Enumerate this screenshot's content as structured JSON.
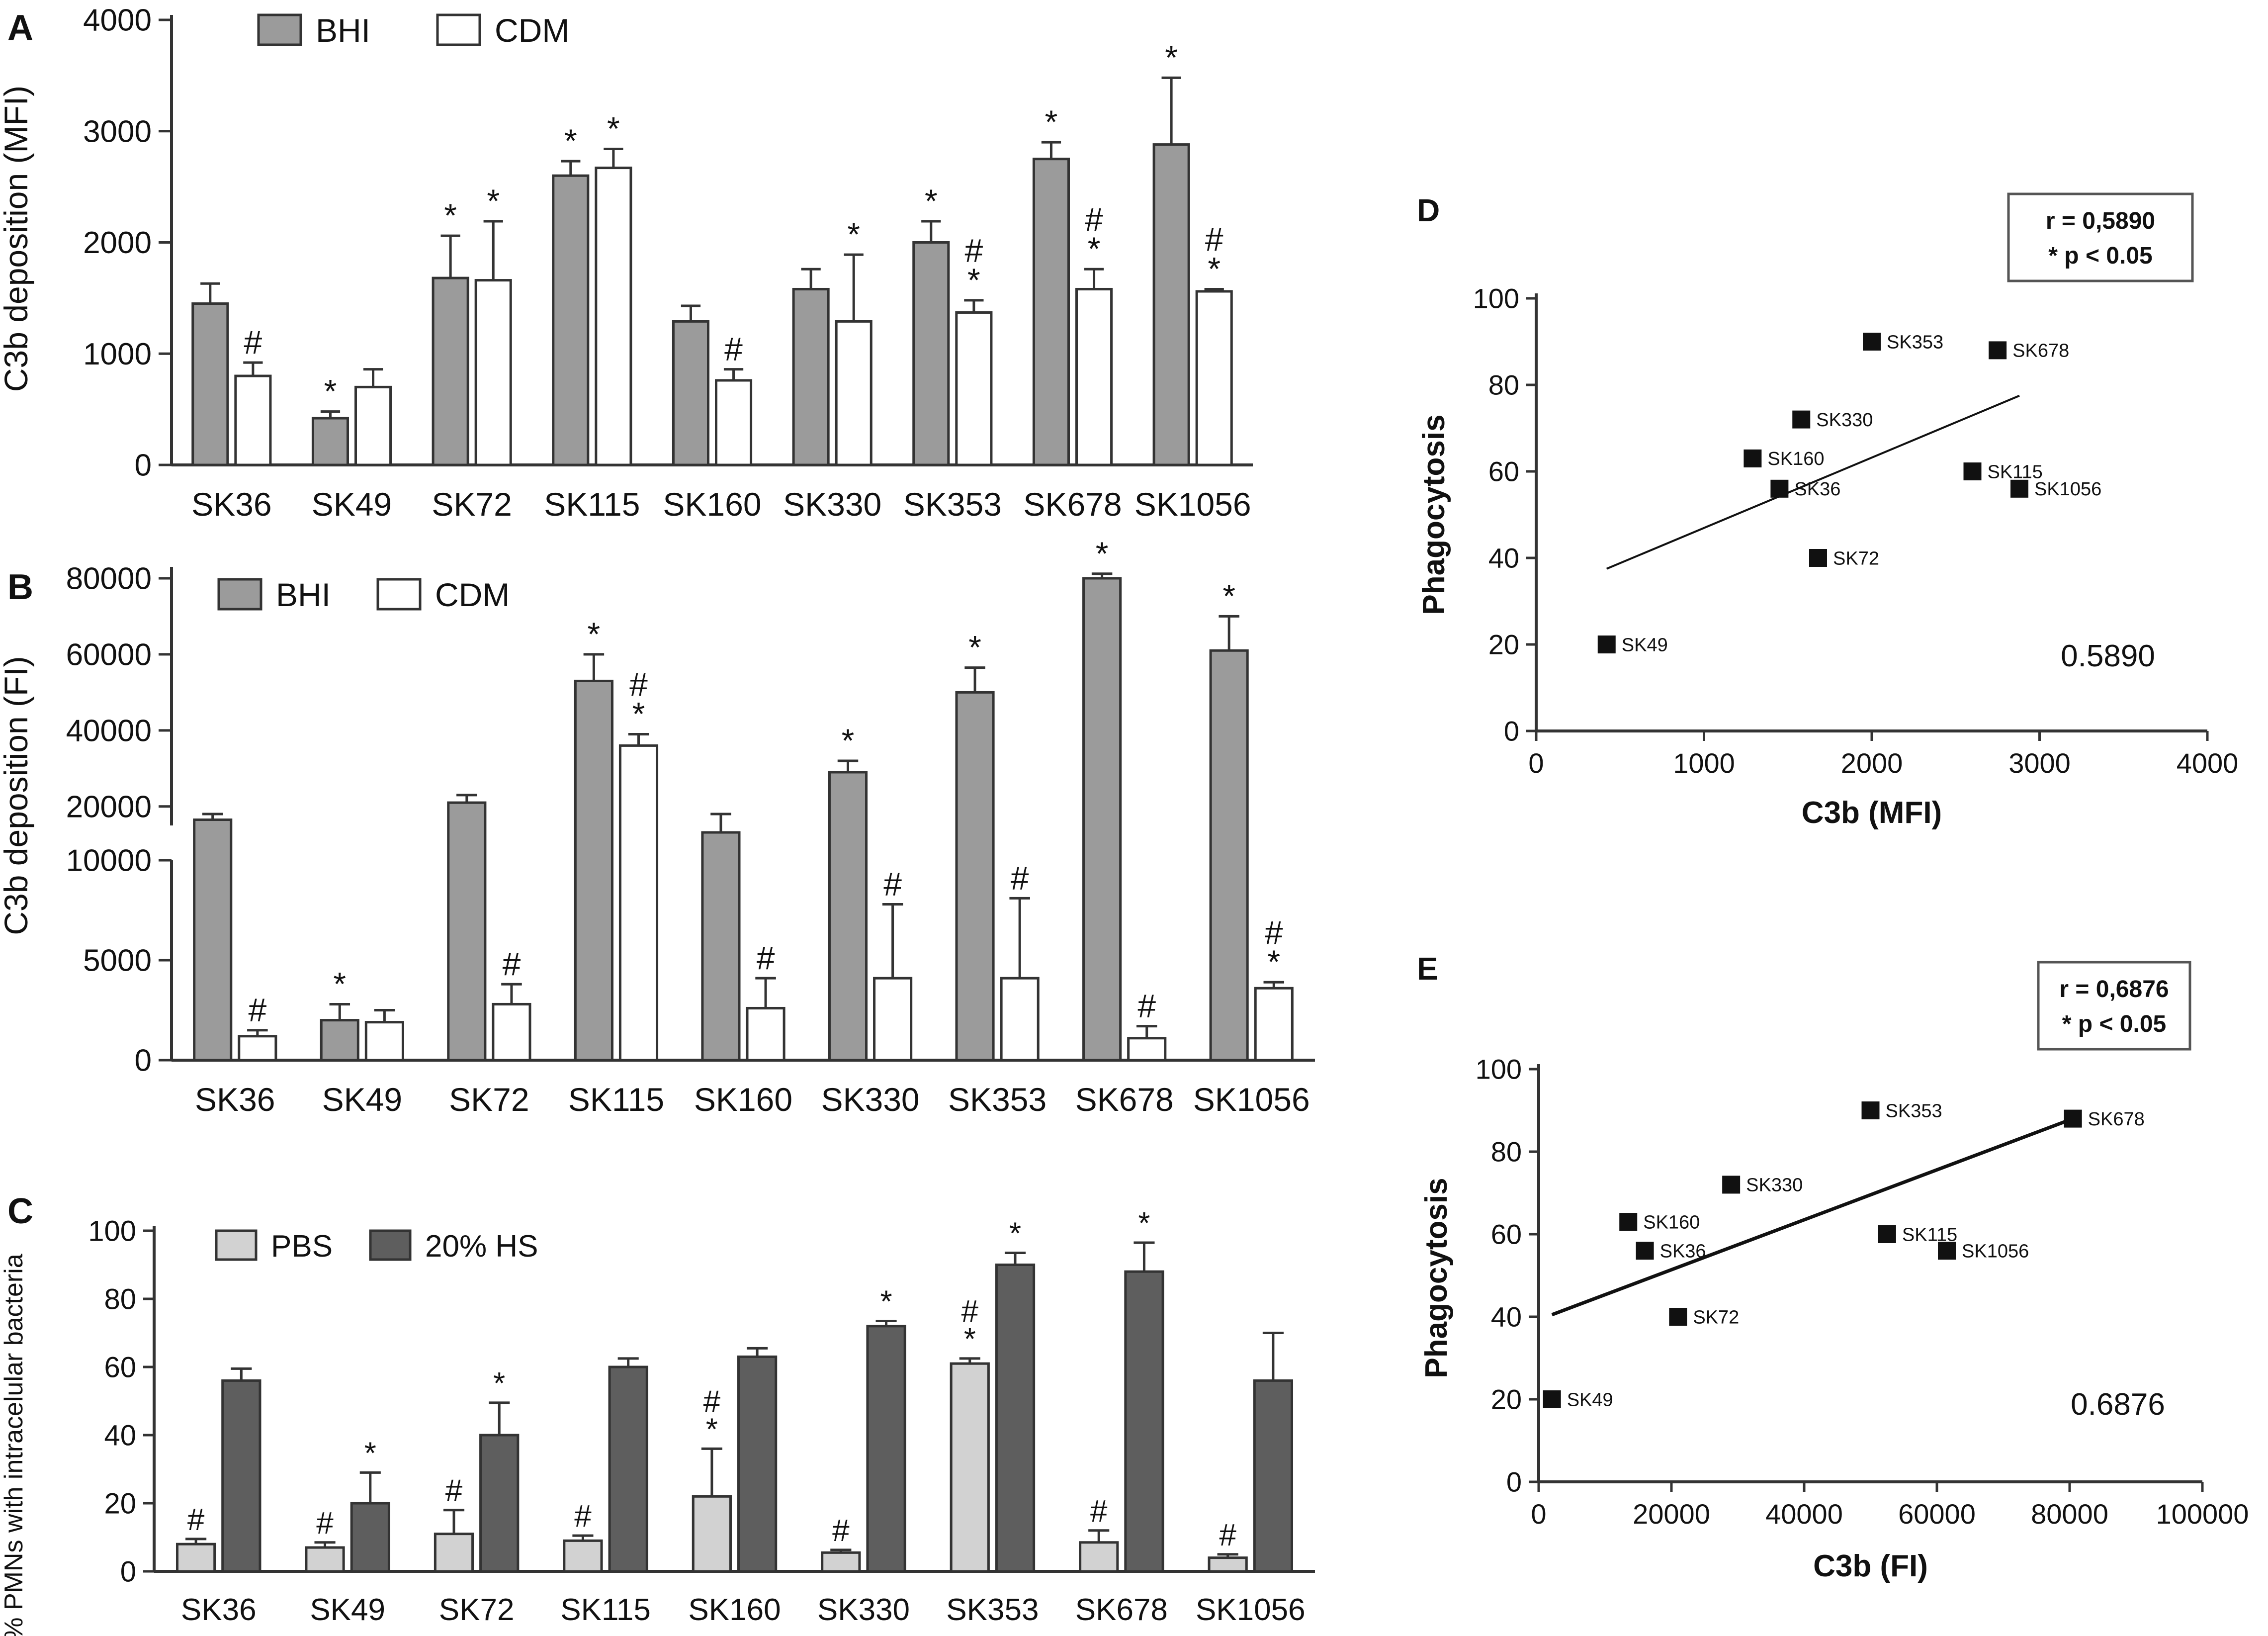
{
  "colors": {
    "bhi": "#9b9b9b",
    "cdm": "#ffffff",
    "pbs": "#d2d2d2",
    "hs": "#5e5e5e",
    "point": "#111111",
    "stroke": "#333333"
  },
  "chart_data": [
    {
      "id": "A",
      "panel_label": "A",
      "type": "bar",
      "ylabel": "C3b deposition (MFI)",
      "ylim": [
        0,
        4000
      ],
      "yticks": [
        "0",
        "1000",
        "2000",
        "3000",
        "4000"
      ],
      "ytick_values": [
        0,
        1000,
        2000,
        3000,
        4000
      ],
      "categories": [
        "SK36",
        "SK49",
        "SK72",
        "SK115",
        "SK160",
        "SK330",
        "SK353",
        "SK678",
        "SK1056"
      ],
      "legend": [
        "BHI",
        "CDM"
      ],
      "series": [
        {
          "name": "BHI",
          "color": "#9b9b9b",
          "values": [
            1450,
            420,
            1680,
            2600,
            1290,
            1580,
            2000,
            2750,
            2880
          ],
          "errors": [
            180,
            60,
            380,
            130,
            140,
            180,
            190,
            150,
            600
          ],
          "marks": [
            "",
            "*",
            "*",
            "*",
            "",
            "",
            "*",
            "*",
            "*"
          ]
        },
        {
          "name": "CDM",
          "color": "#ffffff",
          "values": [
            800,
            700,
            1660,
            2670,
            760,
            1290,
            1370,
            1580,
            1560
          ],
          "errors": [
            120,
            160,
            530,
            170,
            100,
            600,
            110,
            180,
            20
          ],
          "marks": [
            "#",
            "",
            "*",
            "*",
            "#",
            "*",
            "#*",
            "#*",
            "#*"
          ]
        }
      ]
    },
    {
      "id": "B",
      "panel_label": "B",
      "type": "bar",
      "ylabel": "C3b deposition (FI)",
      "ylim_lower": [
        0,
        10000
      ],
      "ylim_upper": [
        15000,
        83000
      ],
      "yticks": [
        "0",
        "5000",
        "10000",
        "20000",
        "40000",
        "60000",
        "80000"
      ],
      "ytick_values": [
        0,
        5000,
        10000,
        20000,
        40000,
        60000,
        80000
      ],
      "categories": [
        "SK36",
        "SK49",
        "SK72",
        "SK115",
        "SK160",
        "SK330",
        "SK353",
        "SK678",
        "SK1056"
      ],
      "legend": [
        "BHI",
        "CDM"
      ],
      "series": [
        {
          "name": "BHI",
          "color": "#9b9b9b",
          "values": [
            16500,
            2000,
            21000,
            53000,
            14000,
            29000,
            50000,
            80000,
            61000
          ],
          "errors": [
            1500,
            800,
            2000,
            7000,
            4000,
            3000,
            6500,
            1200,
            9000
          ],
          "marks": [
            "",
            "*",
            "",
            "*",
            "",
            "*",
            "*",
            "*",
            "*"
          ]
        },
        {
          "name": "CDM",
          "color": "#ffffff",
          "values": [
            1200,
            1900,
            2800,
            36000,
            2600,
            4100,
            4100,
            1100,
            3600
          ],
          "errors": [
            300,
            600,
            1000,
            3000,
            1500,
            3700,
            4000,
            600,
            300
          ],
          "marks": [
            "#",
            "",
            "#",
            "#*",
            "#",
            "#",
            "#",
            "#",
            "#*"
          ]
        }
      ]
    },
    {
      "id": "C",
      "panel_label": "C",
      "type": "bar",
      "ylabel": "% PMNs with intracelular bacteria",
      "ylim": [
        0,
        100
      ],
      "yticks": [
        "0",
        "20",
        "40",
        "60",
        "80",
        "100"
      ],
      "ytick_values": [
        0,
        20,
        40,
        60,
        80,
        100
      ],
      "categories": [
        "SK36",
        "SK49",
        "SK72",
        "SK115",
        "SK160",
        "SK330",
        "SK353",
        "SK678",
        "SK1056"
      ],
      "legend": [
        "PBS",
        "20% HS"
      ],
      "series": [
        {
          "name": "PBS",
          "color": "#d2d2d2",
          "values": [
            8,
            7,
            11,
            9,
            22,
            5.5,
            61,
            8.5,
            4
          ],
          "errors": [
            1.5,
            1.5,
            7,
            1.5,
            14,
            0.8,
            1.5,
            3.5,
            1
          ],
          "marks": [
            "#",
            "#",
            "#",
            "#",
            "#*",
            "#",
            "#*",
            "#",
            "#"
          ]
        },
        {
          "name": "20% HS",
          "color": "#5e5e5e",
          "values": [
            56,
            20,
            40,
            60,
            63,
            72,
            90,
            88,
            56
          ],
          "errors": [
            3.5,
            9,
            9.5,
            2.5,
            2.5,
            1.5,
            3.5,
            8.5,
            14
          ],
          "marks": [
            "",
            "*",
            "*",
            "",
            "",
            "*",
            "*",
            "*",
            ""
          ]
        }
      ]
    },
    {
      "id": "D",
      "panel_label": "D",
      "type": "scatter",
      "xlabel": "C3b (MFI)",
      "ylabel": "Phagocytosis",
      "xlim": [
        0,
        4000
      ],
      "ylim": [
        0,
        100
      ],
      "xticks": [
        "0",
        "1000",
        "2000",
        "3000",
        "4000"
      ],
      "xtick_values": [
        0,
        1000,
        2000,
        3000,
        4000
      ],
      "yticks": [
        "0",
        "20",
        "40",
        "60",
        "80",
        "100"
      ],
      "ytick_values": [
        0,
        20,
        40,
        60,
        80,
        100
      ],
      "points": [
        {
          "label": "SK353",
          "x": 2000,
          "y": 90
        },
        {
          "label": "SK678",
          "x": 2750,
          "y": 88
        },
        {
          "label": "SK330",
          "x": 1580,
          "y": 72
        },
        {
          "label": "SK160",
          "x": 1290,
          "y": 63
        },
        {
          "label": "SK115",
          "x": 2600,
          "y": 60
        },
        {
          "label": "SK36",
          "x": 1450,
          "y": 56
        },
        {
          "label": "SK1056",
          "x": 2880,
          "y": 56
        },
        {
          "label": "SK72",
          "x": 1680,
          "y": 40
        },
        {
          "label": "SK49",
          "x": 420,
          "y": 20
        }
      ],
      "fit": {
        "x": [
          420,
          2880
        ],
        "y": [
          37.5,
          77.5
        ]
      },
      "stats": [
        "r = 0,5890",
        "* p < 0.05"
      ],
      "annotation": "0.5890"
    },
    {
      "id": "E",
      "panel_label": "E",
      "type": "scatter",
      "xlabel": "C3b (FI)",
      "ylabel": "Phagocytosis",
      "xlim": [
        0,
        100000
      ],
      "ylim": [
        0,
        100
      ],
      "xticks": [
        "0",
        "20000",
        "40000",
        "60000",
        "80000",
        "100000"
      ],
      "xtick_values": [
        0,
        20000,
        40000,
        60000,
        80000,
        100000
      ],
      "yticks": [
        "0",
        "20",
        "40",
        "60",
        "80",
        "100"
      ],
      "ytick_values": [
        0,
        20,
        40,
        60,
        80,
        100
      ],
      "points": [
        {
          "label": "SK353",
          "x": 50000,
          "y": 90
        },
        {
          "label": "SK678",
          "x": 80500,
          "y": 88
        },
        {
          "label": "SK330",
          "x": 29000,
          "y": 72
        },
        {
          "label": "SK160",
          "x": 13500,
          "y": 63
        },
        {
          "label": "SK115",
          "x": 52500,
          "y": 60
        },
        {
          "label": "SK36",
          "x": 16000,
          "y": 56
        },
        {
          "label": "SK1056",
          "x": 61500,
          "y": 56
        },
        {
          "label": "SK72",
          "x": 21000,
          "y": 40
        },
        {
          "label": "SK49",
          "x": 2000,
          "y": 20
        }
      ],
      "fit": {
        "x": [
          2000,
          80500
        ],
        "y": [
          40.5,
          88
        ]
      },
      "stats": [
        "r = 0,6876",
        "* p < 0.05"
      ],
      "annotation": "0.6876"
    }
  ]
}
